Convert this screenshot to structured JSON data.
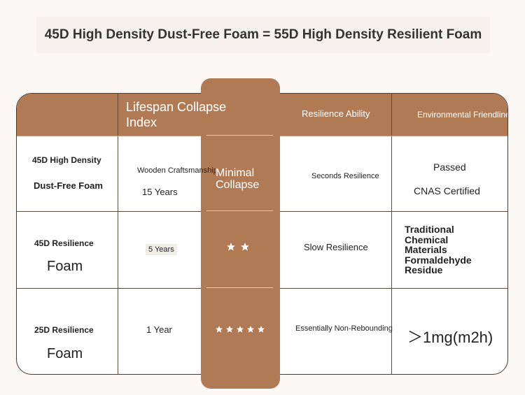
{
  "title": "45D High Density Dust-Free Foam = 55D High Density Resilient Foam",
  "headers": {
    "lifespan_collapse_index": "Lifespan Collapse\nIndex",
    "resilience_ability": "Resilience Ability",
    "environmental_friendliness": "Environmental Friendlines"
  },
  "rows": [
    {
      "name_line1": "45D High Density",
      "name_line2": "Dust-Free Foam",
      "lifespan_note": "Wooden Craftsmanship",
      "lifespan": "15 Years",
      "collapse": "Minimal\nCollapse",
      "resilience": "Seconds Resilience",
      "env_line1": "Passed",
      "env_line2": "CNAS Certified"
    },
    {
      "name_line1": "45D Resilience",
      "name_line2": "Foam",
      "lifespan": "5 Years",
      "collapse_stars": 2,
      "resilience": "Slow Resilience",
      "env": "Traditional\nChemical\nMaterials\nFormaldehyde\nResidue"
    },
    {
      "name_line1": "25D Resilience",
      "name_line2": "Foam",
      "lifespan": "1 Year",
      "collapse_stars": 5,
      "resilience": "Essentially Non-Rebounding",
      "env": "＞1mg(m2h)"
    }
  ],
  "colors": {
    "accent": "#b07a55",
    "background": "#fcf8f5",
    "star": "#ffffff"
  }
}
